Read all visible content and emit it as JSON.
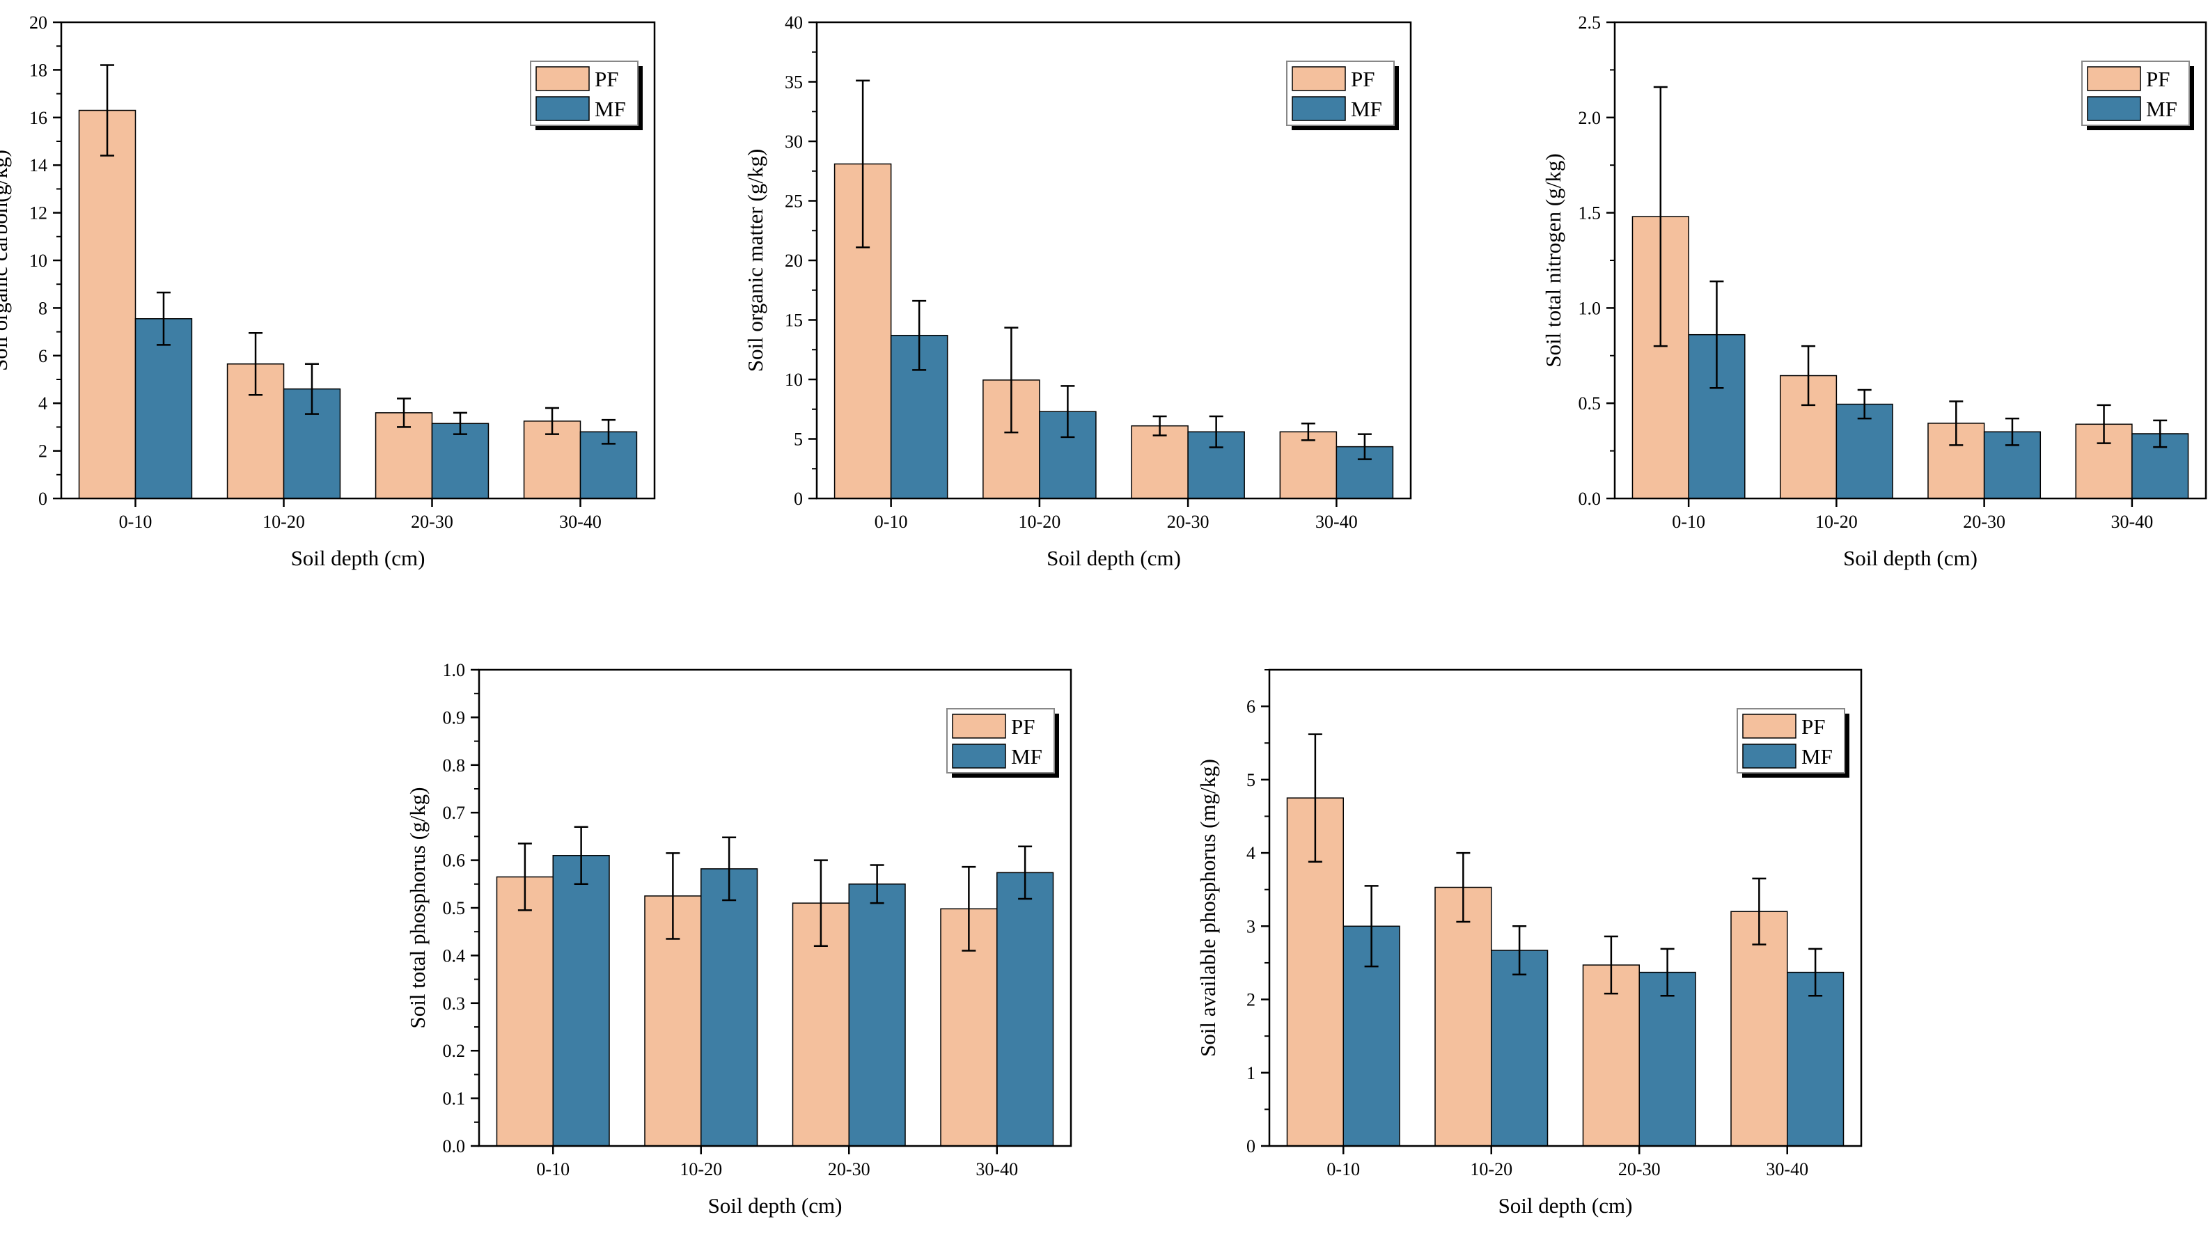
{
  "colors": {
    "PF": "#F4C09D",
    "MF": "#3E7EA4",
    "axis": "#000000",
    "legend_shadow": "#000000"
  },
  "chart_data": [
    {
      "type": "bar",
      "title": "",
      "xlabel": "Soil depth (cm)",
      "ylabel": "Soil organic carbon(g/kg)",
      "categories": [
        "0-10",
        "10-20",
        "20-30",
        "30-40"
      ],
      "ylim": [
        0,
        20
      ],
      "yticks": [
        0,
        2,
        4,
        6,
        8,
        10,
        12,
        14,
        16,
        18,
        20
      ],
      "ytick_labels": [
        "0",
        "2",
        "4",
        "6",
        "8",
        "10",
        "12",
        "14",
        "16",
        "18",
        "20"
      ],
      "legend_position": "top-right",
      "series": [
        {
          "name": "PF",
          "values": [
            16.3,
            5.65,
            3.6,
            3.25
          ],
          "errors": [
            1.9,
            1.3,
            0.6,
            0.55
          ]
        },
        {
          "name": "MF",
          "values": [
            7.55,
            4.6,
            3.15,
            2.8
          ],
          "errors": [
            1.1,
            1.05,
            0.45,
            0.5
          ]
        }
      ]
    },
    {
      "type": "bar",
      "title": "",
      "xlabel": "Soil depth (cm)",
      "ylabel": "Soil organic matter (g/kg)",
      "categories": [
        "0-10",
        "10-20",
        "20-30",
        "30-40"
      ],
      "ylim": [
        0,
        40
      ],
      "yticks": [
        0,
        5,
        10,
        15,
        20,
        25,
        30,
        35,
        40
      ],
      "ytick_labels": [
        "0",
        "5",
        "10",
        "15",
        "20",
        "25",
        "30",
        "35",
        "40"
      ],
      "legend_position": "top-right",
      "series": [
        {
          "name": "PF",
          "values": [
            28.1,
            9.95,
            6.1,
            5.6
          ],
          "errors": [
            7.0,
            4.4,
            0.8,
            0.7
          ]
        },
        {
          "name": "MF",
          "values": [
            13.7,
            7.3,
            5.6,
            4.35
          ],
          "errors": [
            2.9,
            2.15,
            1.3,
            1.05
          ]
        }
      ]
    },
    {
      "type": "bar",
      "title": "",
      "xlabel": "Soil depth (cm)",
      "ylabel": "Soil total nitrogen (g/kg)",
      "categories": [
        "0-10",
        "10-20",
        "20-30",
        "30-40"
      ],
      "ylim": [
        0,
        2.5
      ],
      "yticks": [
        0,
        0.5,
        1.0,
        1.5,
        2.0,
        2.5
      ],
      "ytick_labels": [
        "0.0",
        "0.5",
        "1.0",
        "1.5",
        "2.0",
        "2.5"
      ],
      "legend_position": "top-right",
      "series": [
        {
          "name": "PF",
          "values": [
            1.48,
            0.645,
            0.395,
            0.39
          ],
          "errors": [
            0.68,
            0.155,
            0.115,
            0.1
          ]
        },
        {
          "name": "MF",
          "values": [
            0.86,
            0.495,
            0.35,
            0.34
          ],
          "errors": [
            0.28,
            0.075,
            0.07,
            0.07
          ]
        }
      ]
    },
    {
      "type": "bar",
      "title": "",
      "xlabel": "Soil depth (cm)",
      "ylabel": "Soil total phosphorus (g/kg)",
      "categories": [
        "0-10",
        "10-20",
        "20-30",
        "30-40"
      ],
      "ylim": [
        0,
        1.0
      ],
      "yticks": [
        0,
        0.1,
        0.2,
        0.3,
        0.4,
        0.5,
        0.6,
        0.7,
        0.8,
        0.9,
        1.0
      ],
      "ytick_labels": [
        "0.0",
        "0.1",
        "0.2",
        "0.3",
        "0.4",
        "0.5",
        "0.6",
        "0.7",
        "0.8",
        "0.9",
        "1.0"
      ],
      "legend_position": "top-right",
      "series": [
        {
          "name": "PF",
          "values": [
            0.565,
            0.525,
            0.51,
            0.498
          ],
          "errors": [
            0.07,
            0.09,
            0.09,
            0.088
          ]
        },
        {
          "name": "MF",
          "values": [
            0.61,
            0.582,
            0.55,
            0.574
          ],
          "errors": [
            0.06,
            0.066,
            0.04,
            0.055
          ]
        }
      ]
    },
    {
      "type": "bar",
      "title": "",
      "xlabel": "Soil depth (cm)",
      "ylabel": "Soil available phosphorus (mg/kg)",
      "categories": [
        "0-10",
        "10-20",
        "20-30",
        "30-40"
      ],
      "ylim": [
        0,
        6.5
      ],
      "yticks": [
        0,
        1,
        2,
        3,
        4,
        5,
        6
      ],
      "ytick_labels": [
        "0",
        "1",
        "2",
        "3",
        "4",
        "5",
        "6"
      ],
      "legend_position": "top-right",
      "series": [
        {
          "name": "PF",
          "values": [
            4.75,
            3.53,
            2.47,
            3.2
          ],
          "errors": [
            0.87,
            0.47,
            0.39,
            0.45
          ]
        },
        {
          "name": "MF",
          "values": [
            3.0,
            2.67,
            2.37,
            2.37
          ],
          "errors": [
            0.55,
            0.33,
            0.32,
            0.32
          ]
        }
      ]
    }
  ]
}
